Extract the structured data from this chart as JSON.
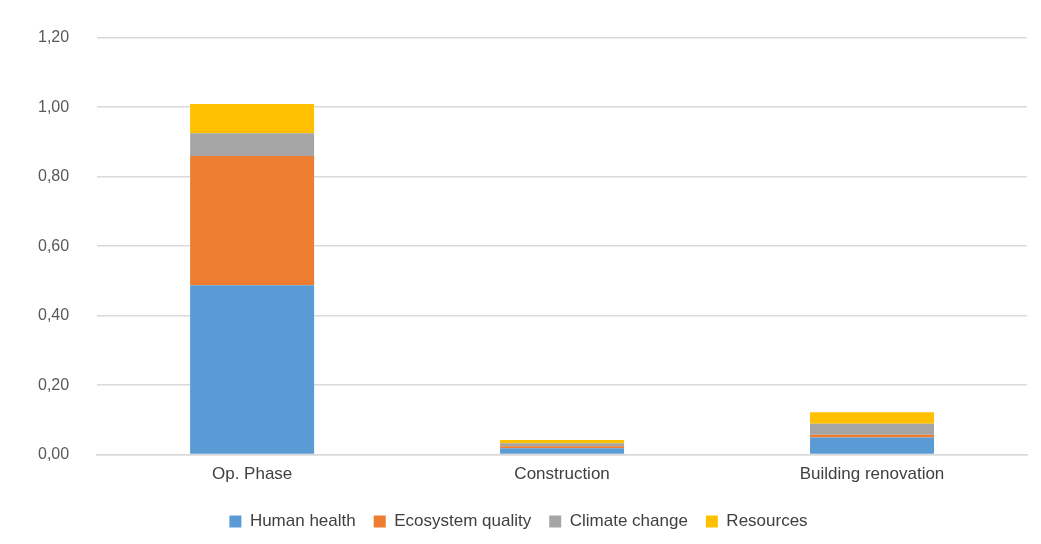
{
  "chart_data": {
    "type": "bar",
    "stacked": true,
    "categories": [
      "Op. Phase",
      "Construction",
      "Building renovation"
    ],
    "series": [
      {
        "name": "Human health",
        "color": "#5b9bd5",
        "values": [
          0.487,
          0.018,
          0.049
        ]
      },
      {
        "name": "Ecosystem quality",
        "color": "#ed7d31",
        "values": [
          0.372,
          0.006,
          0.008
        ]
      },
      {
        "name": "Climate change",
        "color": "#a5a5a5",
        "values": [
          0.066,
          0.009,
          0.032
        ]
      },
      {
        "name": "Resources",
        "color": "#ffc000",
        "values": [
          0.084,
          0.009,
          0.033
        ]
      }
    ],
    "ylim": [
      0,
      1.2
    ],
    "yticks": [
      {
        "value": 0,
        "label": "0,00"
      },
      {
        "value": 0.2,
        "label": "0,20"
      },
      {
        "value": 0.4,
        "label": "0,40"
      },
      {
        "value": 0.6,
        "label": "0,60"
      },
      {
        "value": 0.8,
        "label": "0,80"
      },
      {
        "value": 1,
        "label": "1,00"
      },
      {
        "value": 1.2,
        "label": "1,20"
      }
    ],
    "grid": "y",
    "legend": "bottom"
  }
}
